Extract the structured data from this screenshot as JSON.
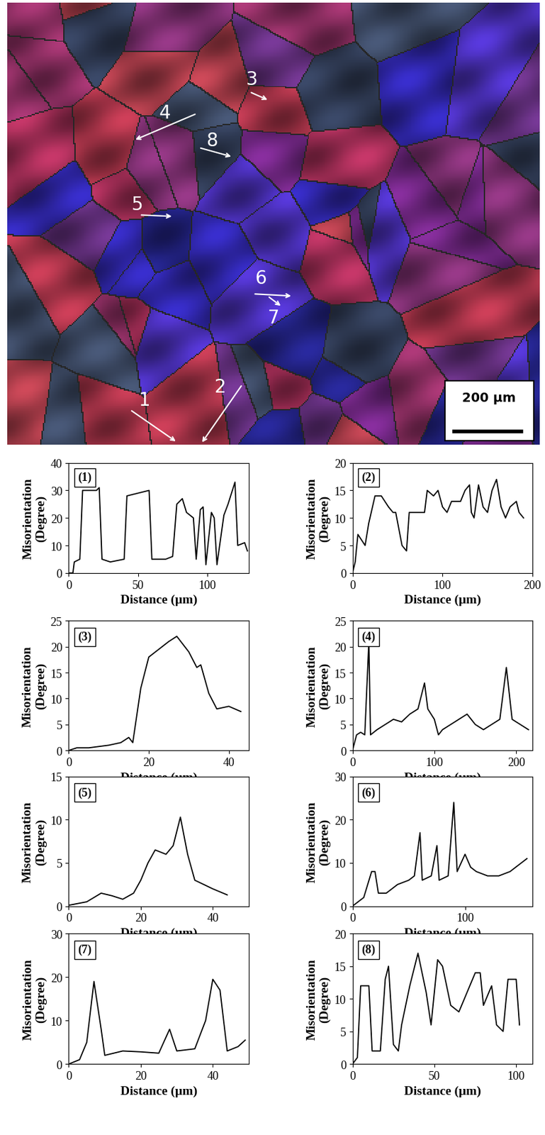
{
  "micrograph": {
    "arrow_labels": [
      "1",
      "2",
      "3",
      "4",
      "5",
      "6",
      "7",
      "8"
    ],
    "scale_bar": "200 µm"
  },
  "chart_data": [
    {
      "type": "line",
      "title": "(1)",
      "x_label": "Distance (µm)",
      "y_label": "Misorientation\n(Degree)",
      "color": "#000000",
      "x": [
        0,
        3,
        4,
        8,
        10,
        20,
        22,
        24,
        30,
        40,
        42,
        50,
        58,
        60,
        70,
        75,
        78,
        82,
        85,
        90,
        92,
        95,
        97,
        99,
        103,
        105,
        107,
        112,
        115,
        120,
        122,
        127,
        129
      ],
      "values": [
        0,
        0,
        4,
        5,
        30,
        30,
        31,
        5,
        4,
        5,
        28,
        29,
        30,
        5,
        5,
        6,
        25,
        27,
        22,
        20,
        5,
        23,
        24,
        3,
        22,
        20,
        3,
        21,
        25,
        33,
        10,
        11,
        8
      ],
      "xlim": [
        0,
        130
      ],
      "ylim": [
        0,
        40
      ],
      "xticks": [
        0,
        50,
        100
      ],
      "yticks": [
        0,
        10,
        20,
        30,
        40
      ]
    },
    {
      "type": "line",
      "title": "(2)",
      "x_label": "Distance (µm)",
      "y_label": "Misorientation\n(Degree)",
      "color": "#000000",
      "x": [
        0,
        3,
        6,
        10,
        14,
        18,
        25,
        32,
        40,
        45,
        48,
        55,
        60,
        63,
        80,
        83,
        90,
        95,
        100,
        105,
        110,
        120,
        125,
        130,
        132,
        135,
        140,
        145,
        150,
        155,
        160,
        165,
        170,
        175,
        182,
        185,
        190
      ],
      "values": [
        0,
        2,
        7,
        6,
        5,
        9,
        14,
        14,
        12,
        11,
        11,
        5,
        4,
        11,
        11,
        15,
        14,
        15,
        12,
        11,
        13,
        13,
        15,
        16,
        11,
        10,
        16,
        12,
        11,
        15,
        17,
        12,
        10,
        12,
        13,
        11,
        10
      ],
      "xlim": [
        0,
        200
      ],
      "ylim": [
        0,
        20
      ],
      "xticks": [
        0,
        100,
        200
      ],
      "yticks": [
        0,
        5,
        10,
        15,
        20
      ]
    },
    {
      "type": "line",
      "title": "(3)",
      "x_label": "Distance (µm)",
      "y_label": "Misorientation\n(Degree)",
      "color": "#000000",
      "x": [
        0,
        2,
        5,
        10,
        13,
        15,
        16,
        18,
        20,
        25,
        27,
        30,
        32,
        33,
        35,
        37,
        40,
        43
      ],
      "values": [
        0,
        0.5,
        0.5,
        1,
        1.5,
        2.5,
        1.5,
        12,
        18,
        21,
        22,
        19,
        16,
        16.5,
        11,
        8,
        8.5,
        7.5
      ],
      "xlim": [
        0,
        45
      ],
      "ylim": [
        0,
        25
      ],
      "xticks": [
        0,
        20,
        40
      ],
      "yticks": [
        0,
        5,
        10,
        15,
        20,
        25
      ]
    },
    {
      "type": "line",
      "title": "(4)",
      "x_label": "Distance (µm)",
      "y_label": "Misorientation\n(Degree)",
      "color": "#000000",
      "x": [
        0,
        5,
        10,
        15,
        20,
        22,
        30,
        40,
        50,
        60,
        70,
        80,
        88,
        92,
        100,
        105,
        110,
        120,
        130,
        140,
        150,
        160,
        170,
        180,
        188,
        195,
        205,
        215
      ],
      "values": [
        0,
        3,
        3.5,
        3,
        21,
        3,
        4,
        5,
        6,
        5.5,
        7,
        8,
        13,
        8,
        6,
        3,
        4,
        5,
        6,
        7,
        5,
        4,
        5,
        6,
        16,
        6,
        5,
        4
      ],
      "xlim": [
        0,
        220
      ],
      "ylim": [
        0,
        25
      ],
      "xticks": [
        0,
        100,
        200
      ],
      "yticks": [
        0,
        5,
        10,
        15,
        20,
        25
      ]
    },
    {
      "type": "line",
      "title": "(5)",
      "x_label": "Distance (µm)",
      "y_label": "Misorientation\n(Degree)",
      "color": "#000000",
      "x": [
        0,
        5,
        9,
        12,
        15,
        18,
        20,
        22,
        24,
        27,
        29,
        31,
        33,
        35,
        40,
        44
      ],
      "values": [
        0.1,
        0.5,
        1.5,
        1.2,
        0.8,
        1.5,
        3,
        5,
        6.5,
        6,
        7,
        10.3,
        6,
        3,
        2,
        1.3
      ],
      "xlim": [
        0,
        50
      ],
      "ylim": [
        0,
        15
      ],
      "xticks": [
        0,
        20,
        40
      ],
      "yticks": [
        0,
        5,
        10,
        15
      ]
    },
    {
      "type": "line",
      "title": "(6)",
      "x_label": "Distance (µm)",
      "y_label": "Misorientation\n(Degree)",
      "color": "#000000",
      "x": [
        0,
        5,
        10,
        17,
        20,
        23,
        30,
        40,
        50,
        55,
        60,
        62,
        70,
        75,
        77,
        85,
        90,
        93,
        100,
        105,
        110,
        120,
        130,
        140,
        145,
        150,
        155
      ],
      "values": [
        0,
        1,
        2,
        8,
        8,
        3,
        3,
        5,
        6,
        7,
        17,
        6,
        7,
        14,
        6,
        7,
        24,
        8,
        12,
        9,
        8,
        7,
        7,
        8,
        9,
        10,
        11
      ],
      "xlim": [
        0,
        160
      ],
      "ylim": [
        0,
        30
      ],
      "xticks": [
        0,
        100
      ],
      "yticks": [
        0,
        10,
        20,
        30
      ]
    },
    {
      "type": "line",
      "title": "(7)",
      "x_label": "Distance (µm)",
      "y_label": "Misorientation\n(Degree)",
      "color": "#000000",
      "x": [
        0,
        3,
        5,
        7,
        9,
        10,
        15,
        20,
        25,
        28,
        30,
        35,
        38,
        40,
        42,
        44,
        47,
        49
      ],
      "values": [
        0,
        1,
        5,
        19,
        8,
        2,
        3,
        2.8,
        2.5,
        8,
        3,
        3.5,
        10,
        19.5,
        17,
        3,
        4,
        5.5
      ],
      "xlim": [
        0,
        50
      ],
      "ylim": [
        0,
        30
      ],
      "xticks": [
        0,
        20,
        40
      ],
      "yticks": [
        0,
        10,
        20,
        30
      ]
    },
    {
      "type": "line",
      "title": "(8)",
      "x_label": "Distance (µm)",
      "y_label": "Misorientation\n(Degree)",
      "color": "#000000",
      "x": [
        0,
        3,
        5,
        10,
        12,
        17,
        20,
        22,
        25,
        28,
        30,
        35,
        40,
        45,
        48,
        52,
        55,
        60,
        65,
        70,
        75,
        78,
        80,
        85,
        88,
        92,
        95,
        100,
        102
      ],
      "values": [
        0,
        1,
        12,
        12,
        2,
        2,
        13,
        15,
        3,
        2,
        6,
        12,
        17,
        11,
        6,
        16,
        15,
        9,
        8,
        11,
        14,
        14,
        9,
        12,
        6,
        5,
        13,
        13,
        6
      ],
      "xlim": [
        0,
        110
      ],
      "ylim": [
        0,
        20
      ],
      "xticks": [
        0,
        50,
        100
      ],
      "yticks": [
        0,
        5,
        10,
        15,
        20
      ]
    }
  ]
}
